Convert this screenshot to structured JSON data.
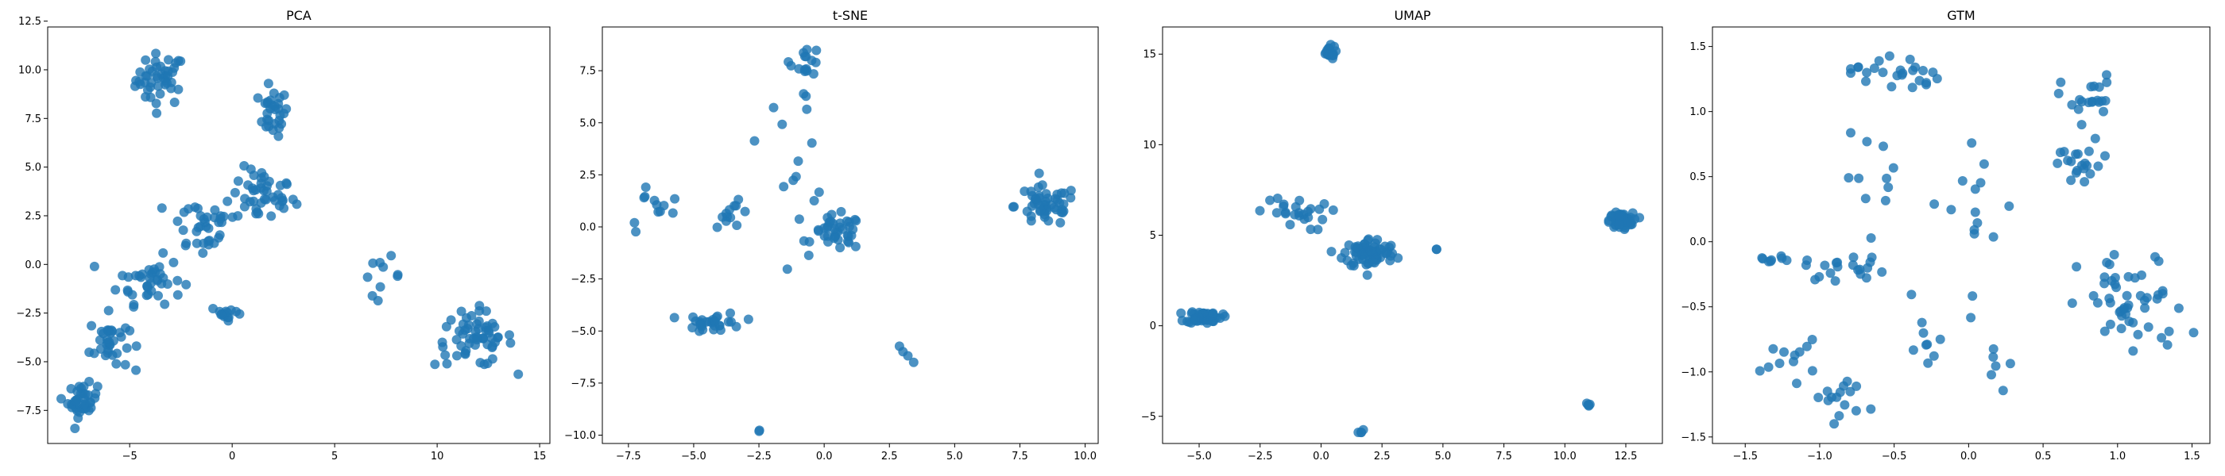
{
  "colors": {
    "points": "#1f77b4",
    "background": "#ffffff"
  },
  "chart_data": [
    {
      "type": "scatter",
      "title": "PCA",
      "xlabel": "",
      "ylabel": "",
      "xlim": [
        -9,
        15.5
      ],
      "ylim": [
        -9.2,
        12.2
      ],
      "xticks": [
        -5,
        0,
        5,
        10,
        15
      ],
      "yticks": [
        -7.5,
        -5.0,
        -2.5,
        0.0,
        2.5,
        5.0,
        7.5,
        10.0,
        12.5
      ],
      "xtick_labels": [
        "−5",
        "0",
        "5",
        "10",
        "15"
      ],
      "ytick_labels": [
        "−7.5",
        "−5.0",
        "−2.5",
        "0.0",
        "2.5",
        "5.0",
        "7.5",
        "10.0",
        "12.5"
      ],
      "grid": false,
      "clusters": [
        {
          "center": [
            -3.5,
            9.5
          ],
          "spread": [
            1.0,
            1.1
          ],
          "n": 45
        },
        {
          "center": [
            2.0,
            7.8
          ],
          "spread": [
            0.6,
            1.0
          ],
          "n": 30
        },
        {
          "center": [
            1.5,
            3.5
          ],
          "spread": [
            1.3,
            1.2
          ],
          "n": 45
        },
        {
          "center": [
            -1.5,
            2.0
          ],
          "spread": [
            1.4,
            1.4
          ],
          "n": 35
        },
        {
          "center": [
            -4.0,
            -0.8
          ],
          "spread": [
            1.3,
            1.0
          ],
          "n": 40
        },
        {
          "center": [
            -6.0,
            -4.0
          ],
          "spread": [
            0.8,
            1.2
          ],
          "n": 35
        },
        {
          "center": [
            -7.3,
            -7.0
          ],
          "spread": [
            0.6,
            0.7
          ],
          "n": 40
        },
        {
          "center": [
            -0.2,
            -2.5
          ],
          "spread": [
            0.7,
            0.3
          ],
          "n": 15
        },
        {
          "center": [
            7.3,
            -0.6
          ],
          "spread": [
            0.8,
            0.8
          ],
          "n": 10
        },
        {
          "center": [
            11.8,
            -3.8
          ],
          "spread": [
            1.6,
            1.2
          ],
          "n": 60
        }
      ]
    },
    {
      "type": "scatter",
      "title": "t-SNE",
      "xlabel": "",
      "ylabel": "",
      "xlim": [
        -8.5,
        10.5
      ],
      "ylim": [
        -10.4,
        9.6
      ],
      "xticks": [
        -7.5,
        -5.0,
        -2.5,
        0.0,
        2.5,
        5.0,
        7.5,
        10.0
      ],
      "yticks": [
        -10.0,
        -7.5,
        -5.0,
        -2.5,
        0.0,
        2.5,
        5.0,
        7.5
      ],
      "xtick_labels": [
        "−7.5",
        "−5.0",
        "−2.5",
        "0.0",
        "2.5",
        "5.0",
        "7.5",
        "10.0"
      ],
      "ytick_labels": [
        "−10.0",
        "−7.5",
        "−5.0",
        "−2.5",
        "0.0",
        "2.5",
        "5.0",
        "7.5"
      ],
      "grid": false,
      "clusters": [
        {
          "center": [
            8.5,
            1.0
          ],
          "spread": [
            1.0,
            0.8
          ],
          "n": 50
        },
        {
          "center": [
            0.5,
            -0.3
          ],
          "spread": [
            0.8,
            0.7
          ],
          "n": 40
        },
        {
          "center": [
            -4.2,
            -4.6
          ],
          "spread": [
            0.9,
            0.4
          ],
          "n": 30
        },
        {
          "center": [
            -0.7,
            8.0
          ],
          "spread": [
            0.5,
            0.6
          ],
          "n": 15
        },
        {
          "center": [
            -3.5,
            0.6
          ],
          "spread": [
            0.6,
            0.5
          ],
          "n": 12
        },
        {
          "center": [
            -6.5,
            1.0
          ],
          "spread": [
            0.9,
            1.0
          ],
          "n": 12
        },
        {
          "center": [
            -1.0,
            4.0
          ],
          "spread": [
            1.2,
            2.5
          ],
          "n": 15
        },
        {
          "center": [
            3.0,
            -6.0
          ],
          "spread": [
            0.3,
            0.5
          ],
          "n": 4
        },
        {
          "center": [
            -2.5,
            -9.8
          ],
          "spread": [
            0.05,
            0.05
          ],
          "n": 2
        }
      ]
    },
    {
      "type": "scatter",
      "title": "UMAP",
      "xlabel": "",
      "ylabel": "",
      "xlim": [
        -6.5,
        14.0
      ],
      "ylim": [
        -6.5,
        16.5
      ],
      "xticks": [
        -5.0,
        -2.5,
        0.0,
        2.5,
        5.0,
        7.5,
        10.0,
        12.5
      ],
      "yticks": [
        -5,
        0,
        5,
        10,
        15
      ],
      "xtick_labels": [
        "−5.0",
        "−2.5",
        "0.0",
        "2.5",
        "5.0",
        "7.5",
        "10.0",
        "12.5"
      ],
      "ytick_labels": [
        "−5",
        "0",
        "5",
        "10",
        "15"
      ],
      "grid": false,
      "clusters": [
        {
          "center": [
            12.3,
            5.8
          ],
          "spread": [
            0.4,
            0.35
          ],
          "n": 80
        },
        {
          "center": [
            2.0,
            4.0
          ],
          "spread": [
            0.9,
            0.7
          ],
          "n": 80
        },
        {
          "center": [
            -4.8,
            0.5
          ],
          "spread": [
            0.6,
            0.3
          ],
          "n": 50
        },
        {
          "center": [
            0.3,
            15.1
          ],
          "spread": [
            0.25,
            0.3
          ],
          "n": 20
        },
        {
          "center": [
            -1.2,
            6.2
          ],
          "spread": [
            1.2,
            0.8
          ],
          "n": 25
        },
        {
          "center": [
            11.0,
            -4.4
          ],
          "spread": [
            0.1,
            0.1
          ],
          "n": 5
        },
        {
          "center": [
            1.6,
            -5.8
          ],
          "spread": [
            0.1,
            0.1
          ],
          "n": 4
        },
        {
          "center": [
            4.7,
            4.2
          ],
          "spread": [
            0.05,
            0.05
          ],
          "n": 2
        }
      ]
    },
    {
      "type": "scatter",
      "title": "GTM",
      "xlabel": "",
      "ylabel": "",
      "xlim": [
        -1.72,
        1.62
      ],
      "ylim": [
        -1.55,
        1.65
      ],
      "xticks": [
        -1.5,
        -1.0,
        -0.5,
        0.0,
        0.5,
        1.0,
        1.5
      ],
      "yticks": [
        -1.5,
        -1.0,
        -0.5,
        0.0,
        0.5,
        1.0,
        1.5
      ],
      "xtick_labels": [
        "−1.5",
        "−1.0",
        "−0.5",
        "0.0",
        "0.5",
        "1.0",
        "1.5"
      ],
      "ytick_labels": [
        "−1.5",
        "−1.0",
        "−0.5",
        "0.0",
        "0.5",
        "1.0",
        "1.5"
      ],
      "grid": false,
      "clusters": [
        {
          "center": [
            -0.5,
            1.3
          ],
          "spread": [
            0.25,
            0.12
          ],
          "n": 25
        },
        {
          "center": [
            0.8,
            1.1
          ],
          "spread": [
            0.15,
            0.15
          ],
          "n": 20
        },
        {
          "center": [
            0.75,
            0.6
          ],
          "spread": [
            0.2,
            0.15
          ],
          "n": 20
        },
        {
          "center": [
            1.1,
            -0.5
          ],
          "spread": [
            0.3,
            0.35
          ],
          "n": 50
        },
        {
          "center": [
            -1.2,
            -0.9
          ],
          "spread": [
            0.15,
            0.12
          ],
          "n": 12
        },
        {
          "center": [
            -0.85,
            -1.2
          ],
          "spread": [
            0.15,
            0.15
          ],
          "n": 15
        },
        {
          "center": [
            -0.8,
            -0.2
          ],
          "spread": [
            0.25,
            0.08
          ],
          "n": 20
        },
        {
          "center": [
            -1.35,
            -0.13
          ],
          "spread": [
            0.1,
            0.02
          ],
          "n": 8
        },
        {
          "center": [
            -0.3,
            -0.8
          ],
          "spread": [
            0.2,
            0.3
          ],
          "n": 10
        },
        {
          "center": [
            0.0,
            0.3
          ],
          "spread": [
            0.3,
            0.5
          ],
          "n": 15
        },
        {
          "center": [
            0.2,
            -0.9
          ],
          "spread": [
            0.15,
            0.2
          ],
          "n": 6
        },
        {
          "center": [
            -0.6,
            0.5
          ],
          "spread": [
            0.2,
            0.25
          ],
          "n": 10
        }
      ]
    }
  ]
}
